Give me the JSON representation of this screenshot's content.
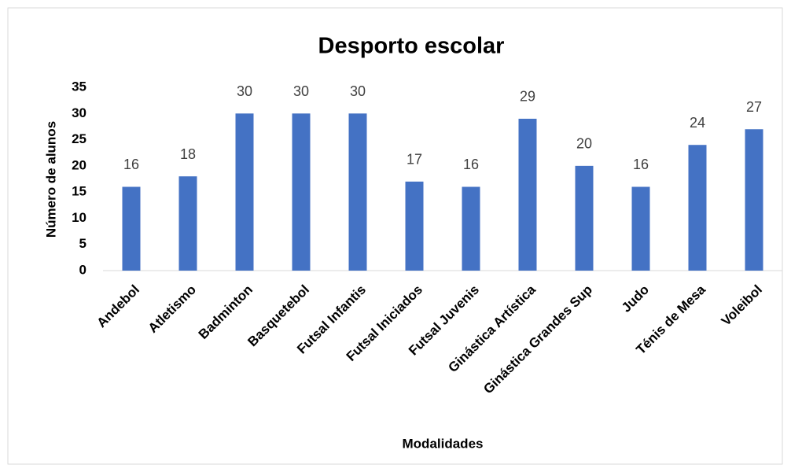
{
  "chart_data": {
    "type": "bar",
    "title": "Desporto escolar",
    "y_label": "Número de alunos",
    "x_label": "Modalidades",
    "categories": [
      "Andebol",
      "Atletismo",
      "Badminton",
      "Basquetebol",
      "Futsal Infantis",
      "Futsal Iniciados",
      "Futsal Juvenis",
      "Ginástica Artística",
      "Ginástica Grandes Sup",
      "Judo",
      "Ténis de Mesa",
      "Voleibol"
    ],
    "values": [
      16,
      18,
      30,
      30,
      30,
      17,
      16,
      29,
      20,
      16,
      24,
      27
    ],
    "color": "#4472c4",
    "ylim": [
      0,
      35
    ],
    "yticks": [
      0,
      5,
      10,
      15,
      20,
      25,
      30,
      35
    ],
    "grid": false
  }
}
